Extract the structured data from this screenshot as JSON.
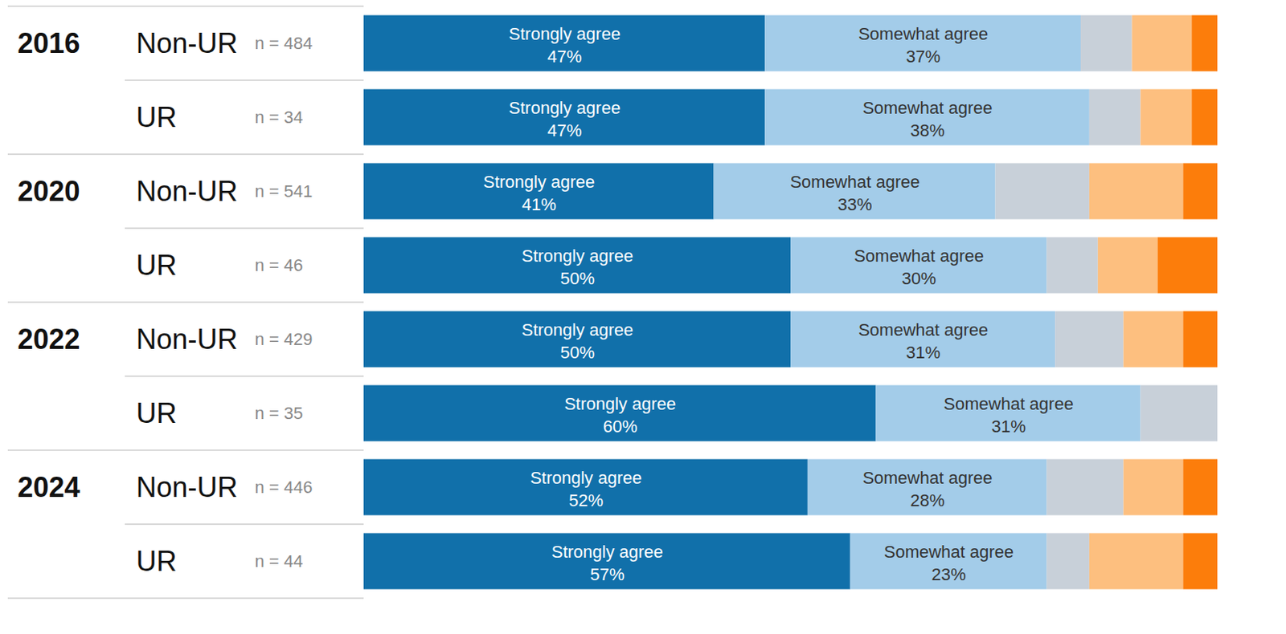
{
  "chart_data": {
    "type": "bar",
    "orientation": "horizontal",
    "stacked": true,
    "data_labels": true,
    "tick_labels": false,
    "xlim": [
      0,
      100
    ],
    "group_labels": [
      "2016",
      null,
      "2020",
      null,
      "2022",
      null,
      "2024",
      null
    ],
    "categories": [
      "Non-UR",
      "UR",
      "Non-UR",
      "UR",
      "Non-UR",
      "UR",
      "Non-UR",
      "UR"
    ],
    "n_labels": [
      "n = 484",
      "n = 34",
      "n = 541",
      "n = 46",
      "n = 429",
      "n = 35",
      "n = 446",
      "n = 44"
    ],
    "series": [
      {
        "name": "Strongly agree",
        "color": "#1170aa",
        "values": [
          47,
          47,
          41,
          50,
          50,
          60,
          52,
          57
        ],
        "value_labels": [
          "47%",
          "47%",
          "41%",
          "50%",
          "50%",
          "60%",
          "52%",
          "57%"
        ]
      },
      {
        "name": "Somewhat agree",
        "color": "#a3cce9",
        "values": [
          37,
          38,
          33,
          30,
          31,
          31,
          28,
          23
        ],
        "value_labels": [
          "37%",
          "38%",
          "33%",
          "30%",
          "31%",
          "31%",
          "28%",
          "23%"
        ]
      },
      {
        "name": null,
        "color": "#c8d0d9",
        "values": [
          6,
          6,
          11,
          6,
          8,
          9,
          9,
          5
        ]
      },
      {
        "name": null,
        "color": "#fdbf7f",
        "values": [
          7,
          6,
          11,
          7,
          7,
          0,
          7,
          11
        ]
      },
      {
        "name": null,
        "color": "#fc7d0b",
        "values": [
          3,
          3,
          4,
          7,
          4,
          0,
          4,
          4
        ]
      }
    ]
  }
}
